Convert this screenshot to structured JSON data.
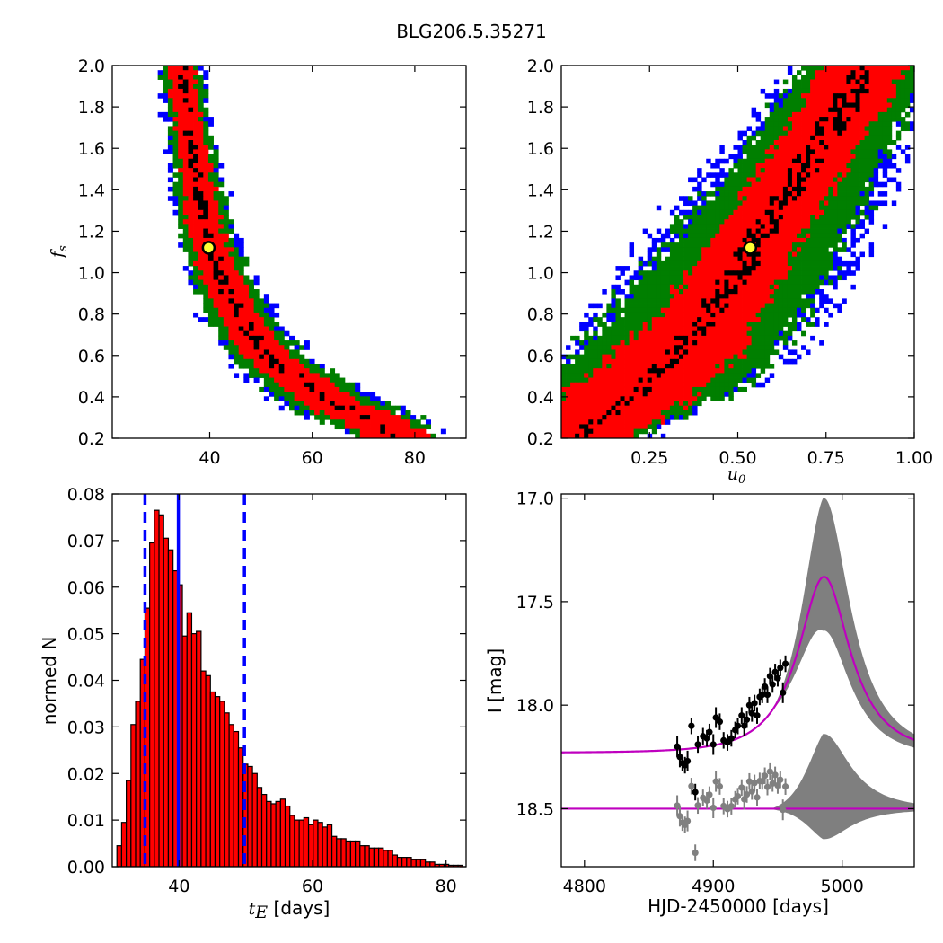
{
  "figure": {
    "title": "BLG206.5.35271"
  },
  "chart_data": [
    {
      "id": "fs-vs-tE",
      "type": "heatmap",
      "title": "",
      "xlabel": "",
      "ylabel": "f_s",
      "xlim": [
        21,
        90
      ],
      "ylim": [
        0.2,
        2.0
      ],
      "x_ticks": [
        40,
        60,
        80
      ],
      "y_ticks": [
        0.2,
        0.4,
        0.6,
        0.8,
        1.0,
        1.2,
        1.4,
        1.6,
        1.8,
        2.0
      ],
      "y_tick_labels": [
        "0.2",
        "0.4",
        "0.6",
        "0.8",
        "1.0",
        "1.2",
        "1.4",
        "1.6",
        "1.8",
        "2.0"
      ],
      "ridge_samples": [
        {
          "fs": 2.0,
          "center": 34.5,
          "w_black": 1.0,
          "w_red": 2.5,
          "w_green": 3.8,
          "w_blue": 4.6
        },
        {
          "fs": 1.8,
          "center": 35.5,
          "w_black": 1.0,
          "w_red": 2.5,
          "w_green": 3.8,
          "w_blue": 4.6
        },
        {
          "fs": 1.6,
          "center": 36.5,
          "w_black": 1.1,
          "w_red": 2.7,
          "w_green": 4.0,
          "w_blue": 4.8
        },
        {
          "fs": 1.4,
          "center": 37.8,
          "w_black": 1.2,
          "w_red": 3.0,
          "w_green": 4.3,
          "w_blue": 5.2
        },
        {
          "fs": 1.2,
          "center": 39.3,
          "w_black": 1.3,
          "w_red": 3.3,
          "w_green": 4.8,
          "w_blue": 5.8
        },
        {
          "fs": 1.0,
          "center": 42.0,
          "w_black": 1.5,
          "w_red": 3.6,
          "w_green": 5.4,
          "w_blue": 6.5
        },
        {
          "fs": 0.8,
          "center": 45.5,
          "w_black": 1.6,
          "w_red": 4.0,
          "w_green": 6.0,
          "w_blue": 7.2
        },
        {
          "fs": 0.6,
          "center": 51.0,
          "w_black": 1.6,
          "w_red": 4.5,
          "w_green": 7.0,
          "w_blue": 8.5
        },
        {
          "fs": 0.4,
          "center": 62.0,
          "w_black": 1.6,
          "w_red": 5.5,
          "w_green": 9.0,
          "w_blue": 11.0
        },
        {
          "fs": 0.3,
          "center": 70.0,
          "w_black": 1.5,
          "w_red": 6.5,
          "w_green": 10.0,
          "w_blue": 12.0
        },
        {
          "fs": 0.22,
          "center": 76.0,
          "w_black": 1.0,
          "w_red": 6.0,
          "w_green": 8.0,
          "w_blue": 8.5
        }
      ],
      "marker": {
        "tE": 39.8,
        "fs": 1.12
      },
      "colors": {
        "black": "#000000",
        "red": "#ff0000",
        "green": "#007f00",
        "blue": "#0000ff",
        "marker_face": "#ffff33"
      }
    },
    {
      "id": "fs-vs-u0",
      "type": "heatmap",
      "title": "",
      "xlabel": "u_0",
      "ylabel": "",
      "xlim": [
        0.0,
        1.0
      ],
      "ylim": [
        0.2,
        2.0
      ],
      "x_ticks": [
        0.25,
        0.5,
        0.75,
        1.0
      ],
      "x_tick_labels": [
        "0.25",
        "0.50",
        "0.75",
        "1.00"
      ],
      "y_ticks": [
        0.2,
        0.4,
        0.6,
        0.8,
        1.0,
        1.2,
        1.4,
        1.6,
        1.8,
        2.0
      ],
      "y_tick_labels": [
        "0.2",
        "0.4",
        "0.6",
        "0.8",
        "1.0",
        "1.2",
        "1.4",
        "1.6",
        "1.8",
        "2.0"
      ],
      "ridge_samples": [
        {
          "fs": 0.22,
          "center": 0.06,
          "w_black": 0.03,
          "w_red": 0.14,
          "w_green": 0.18,
          "w_blue": 0.19
        },
        {
          "fs": 0.4,
          "center": 0.2,
          "w_black": 0.03,
          "w_red": 0.18,
          "w_green": 0.26,
          "w_blue": 0.29
        },
        {
          "fs": 0.6,
          "center": 0.32,
          "w_black": 0.03,
          "w_red": 0.17,
          "w_green": 0.29,
          "w_blue": 0.33
        },
        {
          "fs": 0.8,
          "center": 0.42,
          "w_black": 0.04,
          "w_red": 0.14,
          "w_green": 0.27,
          "w_blue": 0.33
        },
        {
          "fs": 1.0,
          "center": 0.5,
          "w_black": 0.04,
          "w_red": 0.13,
          "w_green": 0.26,
          "w_blue": 0.32
        },
        {
          "fs": 1.2,
          "center": 0.57,
          "w_black": 0.04,
          "w_red": 0.12,
          "w_green": 0.24,
          "w_blue": 0.3
        },
        {
          "fs": 1.4,
          "center": 0.65,
          "w_black": 0.04,
          "w_red": 0.12,
          "w_green": 0.22,
          "w_blue": 0.28
        },
        {
          "fs": 1.6,
          "center": 0.72,
          "w_black": 0.04,
          "w_red": 0.12,
          "w_green": 0.2,
          "w_blue": 0.25
        },
        {
          "fs": 1.8,
          "center": 0.8,
          "w_black": 0.04,
          "w_red": 0.12,
          "w_green": 0.19,
          "w_blue": 0.22
        },
        {
          "fs": 2.0,
          "center": 0.86,
          "w_black": 0.04,
          "w_red": 0.12,
          "w_green": 0.18,
          "w_blue": 0.2
        }
      ],
      "marker": {
        "u0": 0.535,
        "fs": 1.12
      },
      "colors": {
        "black": "#000000",
        "red": "#ff0000",
        "green": "#007f00",
        "blue": "#0000ff",
        "marker_face": "#ffff33"
      }
    },
    {
      "id": "tE-histogram",
      "type": "bar",
      "title": "",
      "xlabel": "t_E  [days]",
      "ylabel": "normed N",
      "xlim": [
        30,
        83
      ],
      "ylim": [
        0.0,
        0.08
      ],
      "x_ticks": [
        40,
        60,
        80
      ],
      "y_ticks": [
        0.0,
        0.01,
        0.02,
        0.03,
        0.04,
        0.05,
        0.06,
        0.07,
        0.08
      ],
      "y_tick_labels": [
        "0.00",
        "0.01",
        "0.02",
        "0.03",
        "0.04",
        "0.05",
        "0.06",
        "0.07",
        "0.08"
      ],
      "bin_width": 0.7,
      "bin_start": 30.7,
      "values": [
        0.0045,
        0.0095,
        0.0185,
        0.0305,
        0.0355,
        0.0445,
        0.0555,
        0.0695,
        0.0765,
        0.0755,
        0.0705,
        0.068,
        0.0635,
        0.0605,
        0.0495,
        0.0545,
        0.05,
        0.0505,
        0.042,
        0.041,
        0.0375,
        0.0365,
        0.0355,
        0.033,
        0.0305,
        0.029,
        0.0255,
        0.022,
        0.0215,
        0.02,
        0.017,
        0.0155,
        0.014,
        0.0135,
        0.014,
        0.0145,
        0.013,
        0.011,
        0.01,
        0.01,
        0.0105,
        0.009,
        0.01,
        0.0095,
        0.0085,
        0.009,
        0.0065,
        0.006,
        0.006,
        0.0055,
        0.0055,
        0.0055,
        0.0045,
        0.0045,
        0.004,
        0.004,
        0.004,
        0.0035,
        0.0035,
        0.0025,
        0.002,
        0.002,
        0.002,
        0.0015,
        0.0015,
        0.0015,
        0.001,
        0.001,
        0.0005,
        0.0005,
        0.0005,
        0.0003,
        0.0003,
        0.0003
      ],
      "median_line": 39.9,
      "percentile_lines": [
        34.9,
        49.8
      ],
      "colors": {
        "bar": "#ff0000",
        "bar_edge": "#000000",
        "lines": "#0000ff"
      }
    },
    {
      "id": "light-curve",
      "type": "scatter",
      "title": "",
      "xlabel": "HJD-2450000 [days]",
      "ylabel": "I [mag]",
      "xlim": [
        4782,
        5056
      ],
      "ylim": [
        18.78,
        16.98
      ],
      "x_ticks": [
        4800,
        4900,
        5000
      ],
      "y_ticks": [
        17.0,
        17.5,
        18.0,
        18.5
      ],
      "y_tick_labels": [
        "17.0",
        "17.5",
        "18.0",
        "18.5"
      ],
      "model": {
        "t0": 4986,
        "tE": 40,
        "u0": 0.535,
        "baseline": 18.23,
        "peak": 17.38
      },
      "band_peak_lo": 17.0,
      "band_peak_hi": 17.62,
      "residual_offset": 18.5,
      "photometry": [
        {
          "t": 4872,
          "mag": 18.2,
          "err": 0.05
        },
        {
          "t": 4874,
          "mag": 18.25,
          "err": 0.05
        },
        {
          "t": 4876,
          "mag": 18.28,
          "err": 0.04
        },
        {
          "t": 4878,
          "mag": 18.29,
          "err": 0.04
        },
        {
          "t": 4880,
          "mag": 18.27,
          "err": 0.05
        },
        {
          "t": 4883,
          "mag": 18.1,
          "err": 0.04
        },
        {
          "t": 4886,
          "mag": 18.42,
          "err": 0.04
        },
        {
          "t": 4888,
          "mag": 18.19,
          "err": 0.04
        },
        {
          "t": 4892,
          "mag": 18.15,
          "err": 0.04
        },
        {
          "t": 4895,
          "mag": 18.16,
          "err": 0.04
        },
        {
          "t": 4897,
          "mag": 18.13,
          "err": 0.04
        },
        {
          "t": 4900,
          "mag": 18.19,
          "err": 0.05
        },
        {
          "t": 4902,
          "mag": 18.06,
          "err": 0.05
        },
        {
          "t": 4905,
          "mag": 18.08,
          "err": 0.04
        },
        {
          "t": 4908,
          "mag": 18.17,
          "err": 0.04
        },
        {
          "t": 4911,
          "mag": 18.18,
          "err": 0.04
        },
        {
          "t": 4914,
          "mag": 18.16,
          "err": 0.04
        },
        {
          "t": 4917,
          "mag": 18.12,
          "err": 0.04
        },
        {
          "t": 4919,
          "mag": 18.1,
          "err": 0.04
        },
        {
          "t": 4922,
          "mag": 18.05,
          "err": 0.04
        },
        {
          "t": 4924,
          "mag": 18.1,
          "err": 0.05
        },
        {
          "t": 4926,
          "mag": 18.07,
          "err": 0.04
        },
        {
          "t": 4928,
          "mag": 18.0,
          "err": 0.04
        },
        {
          "t": 4930,
          "mag": 18.04,
          "err": 0.04
        },
        {
          "t": 4932,
          "mag": 17.99,
          "err": 0.04
        },
        {
          "t": 4934,
          "mag": 18.05,
          "err": 0.04
        },
        {
          "t": 4936,
          "mag": 17.96,
          "err": 0.04
        },
        {
          "t": 4938,
          "mag": 17.95,
          "err": 0.04
        },
        {
          "t": 4940,
          "mag": 17.91,
          "err": 0.04
        },
        {
          "t": 4942,
          "mag": 17.95,
          "err": 0.04
        },
        {
          "t": 4944,
          "mag": 17.86,
          "err": 0.04
        },
        {
          "t": 4946,
          "mag": 17.9,
          "err": 0.04
        },
        {
          "t": 4948,
          "mag": 17.84,
          "err": 0.04
        },
        {
          "t": 4950,
          "mag": 17.87,
          "err": 0.04
        },
        {
          "t": 4952,
          "mag": 17.82,
          "err": 0.04
        },
        {
          "t": 4954,
          "mag": 17.94,
          "err": 0.05
        },
        {
          "t": 4956,
          "mag": 17.8,
          "err": 0.04
        }
      ],
      "colors": {
        "data": "#000000",
        "band": "#7f7f7f",
        "model": "#bf00bf",
        "residual": "#808080"
      }
    }
  ]
}
